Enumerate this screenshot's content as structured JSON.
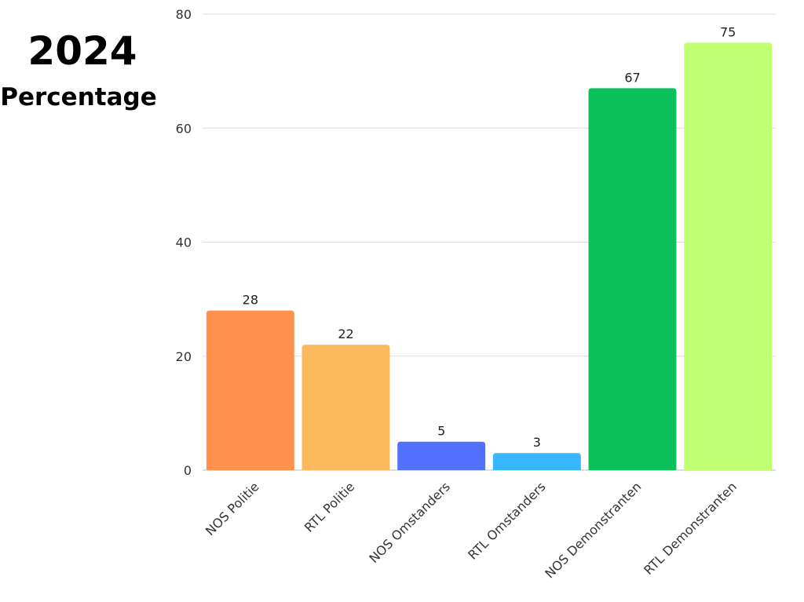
{
  "header": {
    "title": "2024",
    "subtitle": "Percentage"
  },
  "chart_data": {
    "type": "bar",
    "title": "2024",
    "ylabel": "Percentage",
    "xlabel": "",
    "ylim": [
      0,
      80
    ],
    "yticks": [
      0,
      20,
      40,
      60,
      80
    ],
    "grid": true,
    "legend": "none",
    "categories": [
      "NOS Politie",
      "RTL Politie",
      "NOS Omstanders",
      "RTL Omstanders",
      "NOS Demonstranten",
      "RTL Demonstranten"
    ],
    "values": [
      28,
      22,
      5,
      3,
      67,
      75
    ],
    "colors": [
      "#ff914d",
      "#fcb95c",
      "#5271ff",
      "#38b6ff",
      "#0cc05c",
      "#c0ff72"
    ]
  }
}
